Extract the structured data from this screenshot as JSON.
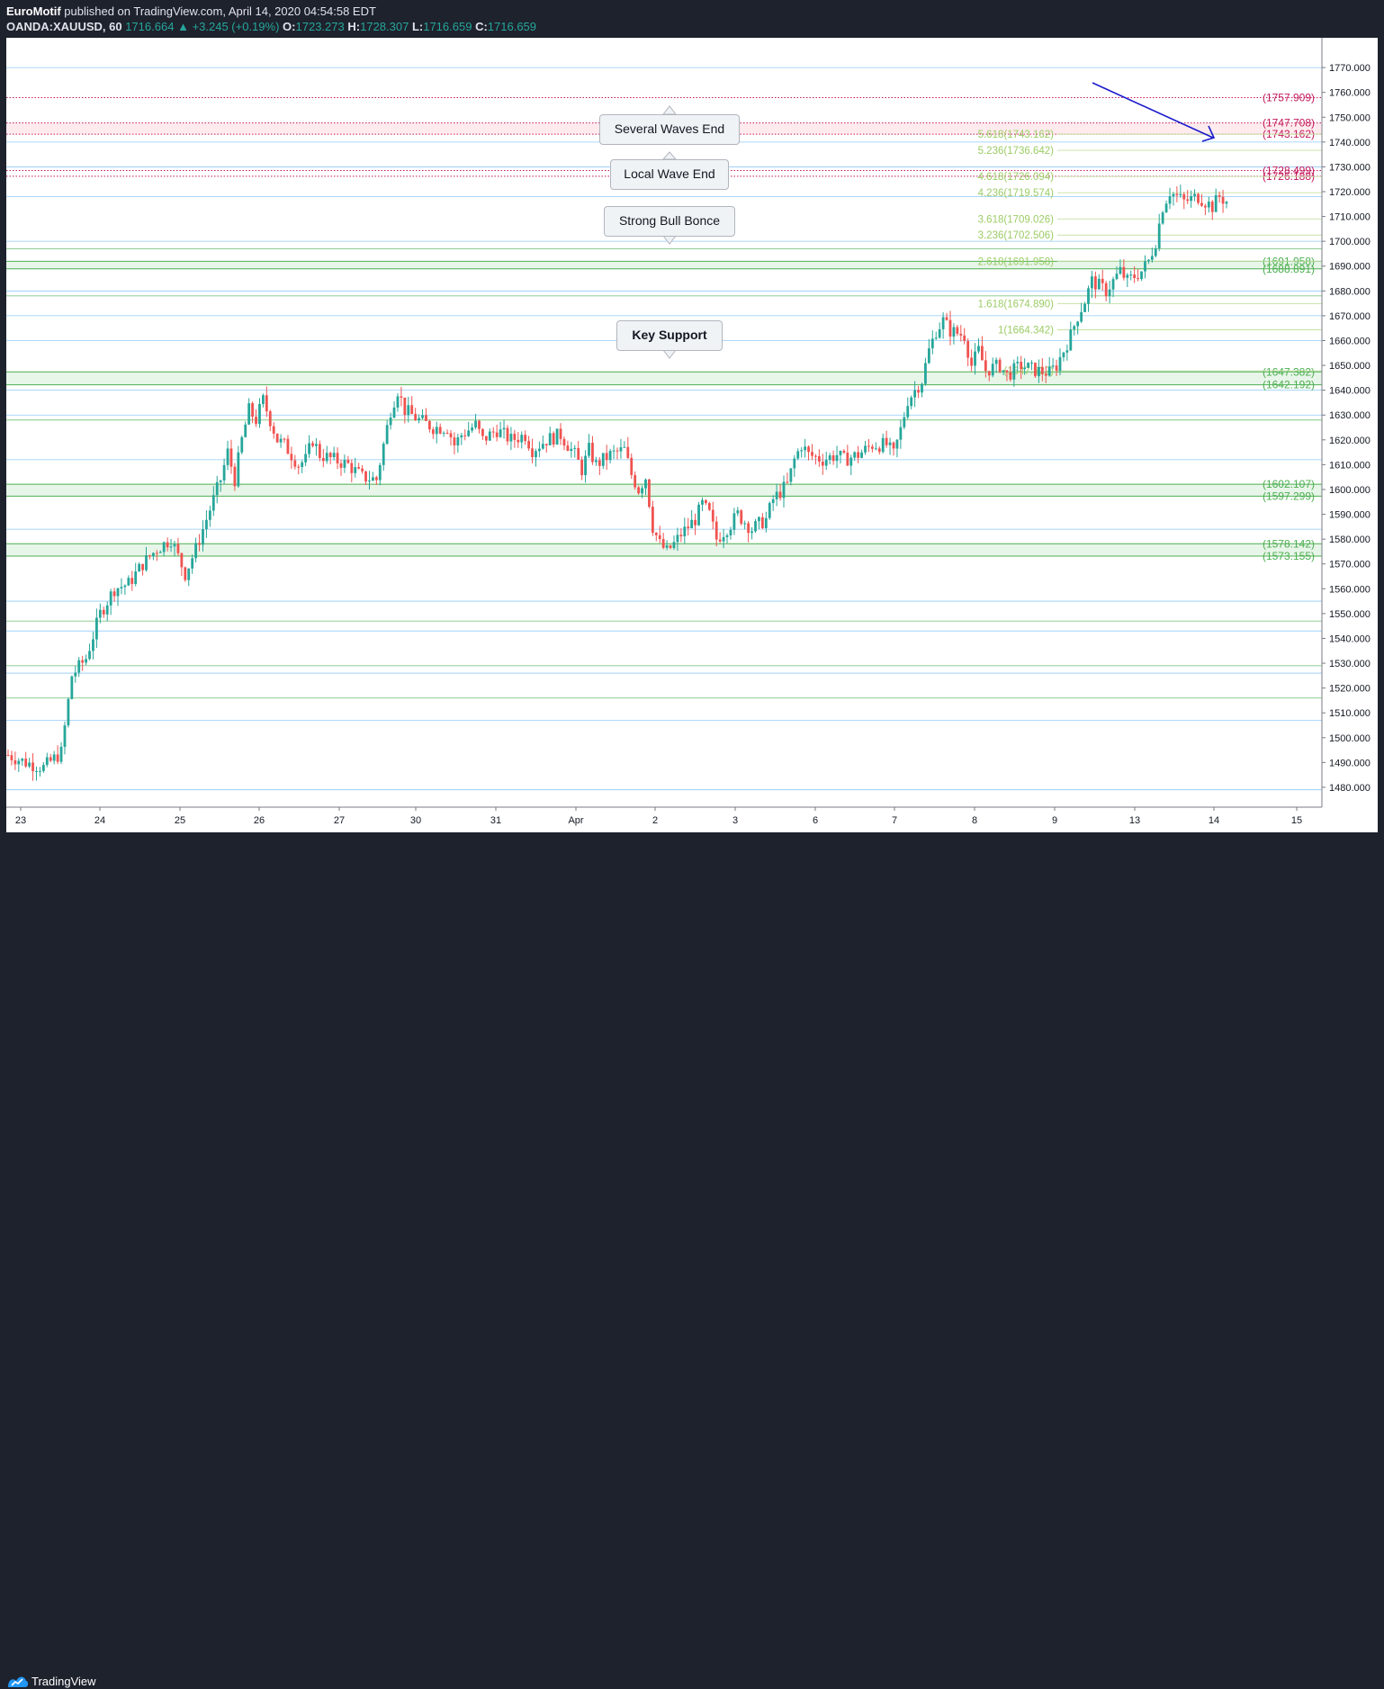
{
  "header": {
    "publisher": "EuroMotif",
    "published_text": " published on TradingView.com, April 14, 2020 04:54:58 EDT",
    "symbol": "OANDA:XAUUSD, 60",
    "last": "1716.664",
    "change": "+3.245 (+0.19%)",
    "o_label": "O:",
    "o": "1723.273",
    "h_label": "H:",
    "h": "1728.307",
    "l_label": "L:",
    "l": "1716.659",
    "c_label": "C:",
    "c": "1716.659"
  },
  "footer": {
    "brand": "TradingView"
  },
  "callouts": {
    "several_waves": "Several Waves End",
    "local_wave": "Local Wave End",
    "strong_bull": "Strong Bull Bonce",
    "key_support": "Key Support"
  },
  "colors": {
    "up": "#26a69a",
    "down": "#ef5350",
    "red_level": "#c2185b",
    "green_level": "#4caf50",
    "fib_text": "#9ccc65",
    "light_blue": "#90caf9",
    "arrow": "#1a1acc"
  },
  "chart_data": {
    "type": "candlestick",
    "title": "",
    "xlabel": "",
    "ylabel": "",
    "ylim": [
      1472,
      1782
    ],
    "y_ticks": [
      1480,
      1490,
      1500,
      1510,
      1520,
      1530,
      1540,
      1550,
      1560,
      1570,
      1580,
      1590,
      1600,
      1610,
      1620,
      1630,
      1640,
      1650,
      1660,
      1670,
      1680,
      1690,
      1700,
      1710,
      1720,
      1730,
      1740,
      1750,
      1760,
      1770
    ],
    "x_ticks": [
      "23",
      "24",
      "25",
      "26",
      "27",
      "30",
      "31",
      "Apr",
      "2",
      "3",
      "6",
      "7",
      "8",
      "9",
      "13",
      "14",
      "15"
    ],
    "path_points": [
      [
        0,
        1493
      ],
      [
        5,
        1490
      ],
      [
        10,
        1488
      ],
      [
        15,
        1494
      ],
      [
        18,
        1525
      ],
      [
        22,
        1532
      ],
      [
        26,
        1550
      ],
      [
        30,
        1560
      ],
      [
        34,
        1562
      ],
      [
        38,
        1570
      ],
      [
        42,
        1576
      ],
      [
        46,
        1580
      ],
      [
        50,
        1566
      ],
      [
        53,
        1576
      ],
      [
        56,
        1588
      ],
      [
        60,
        1604
      ],
      [
        62,
        1615
      ],
      [
        64,
        1604
      ],
      [
        66,
        1620
      ],
      [
        68,
        1632
      ],
      [
        70,
        1628
      ],
      [
        72,
        1636
      ],
      [
        74,
        1628
      ],
      [
        76,
        1620
      ],
      [
        78,
        1618
      ],
      [
        82,
        1610
      ],
      [
        84,
        1612
      ],
      [
        86,
        1620
      ],
      [
        88,
        1614
      ],
      [
        92,
        1612
      ],
      [
        96,
        1610
      ],
      [
        100,
        1605
      ],
      [
        104,
        1604
      ],
      [
        106,
        1618
      ],
      [
        108,
        1632
      ],
      [
        110,
        1640
      ],
      [
        112,
        1632
      ],
      [
        116,
        1628
      ],
      [
        120,
        1625
      ],
      [
        124,
        1625
      ],
      [
        126,
        1618
      ],
      [
        128,
        1622
      ],
      [
        132,
        1626
      ],
      [
        134,
        1620
      ],
      [
        138,
        1624
      ],
      [
        142,
        1620
      ],
      [
        146,
        1622
      ],
      [
        148,
        1616
      ],
      [
        152,
        1620
      ],
      [
        156,
        1622
      ],
      [
        158,
        1618
      ],
      [
        160,
        1614
      ],
      [
        162,
        1608
      ],
      [
        164,
        1616
      ],
      [
        166,
        1610
      ],
      [
        170,
        1614
      ],
      [
        174,
        1616
      ],
      [
        176,
        1606
      ],
      [
        178,
        1600
      ],
      [
        180,
        1605
      ],
      [
        182,
        1585
      ],
      [
        184,
        1578
      ],
      [
        186,
        1575
      ],
      [
        188,
        1578
      ],
      [
        190,
        1582
      ],
      [
        194,
        1588
      ],
      [
        196,
        1594
      ],
      [
        198,
        1590
      ],
      [
        200,
        1580
      ],
      [
        204,
        1586
      ],
      [
        206,
        1590
      ],
      [
        210,
        1584
      ],
      [
        214,
        1588
      ],
      [
        216,
        1596
      ],
      [
        220,
        1602
      ],
      [
        222,
        1612
      ],
      [
        224,
        1618
      ],
      [
        226,
        1614
      ],
      [
        230,
        1612
      ],
      [
        234,
        1614
      ],
      [
        236,
        1612
      ],
      [
        240,
        1614
      ],
      [
        244,
        1618
      ],
      [
        248,
        1618
      ],
      [
        250,
        1614
      ],
      [
        252,
        1624
      ],
      [
        254,
        1636
      ],
      [
        258,
        1644
      ],
      [
        260,
        1656
      ],
      [
        262,
        1664
      ],
      [
        264,
        1668
      ],
      [
        266,
        1664
      ],
      [
        270,
        1662
      ],
      [
        272,
        1650
      ],
      [
        274,
        1656
      ],
      [
        276,
        1648
      ],
      [
        280,
        1650
      ],
      [
        282,
        1646
      ],
      [
        286,
        1650
      ],
      [
        290,
        1648
      ],
      [
        294,
        1647
      ],
      [
        296,
        1650
      ],
      [
        298,
        1656
      ],
      [
        300,
        1662
      ],
      [
        302,
        1670
      ],
      [
        304,
        1676
      ],
      [
        306,
        1684
      ],
      [
        308,
        1682
      ],
      [
        310,
        1680
      ],
      [
        314,
        1688
      ],
      [
        316,
        1684
      ],
      [
        320,
        1688
      ],
      [
        322,
        1692
      ],
      [
        324,
        1700
      ],
      [
        326,
        1714
      ],
      [
        328,
        1720
      ],
      [
        332,
        1716
      ],
      [
        336,
        1718
      ],
      [
        340,
        1714
      ],
      [
        342,
        1718
      ],
      [
        344,
        1716
      ]
    ],
    "horizontal_levels": [
      {
        "price": 1757.909,
        "label": "(1757.909)",
        "color": "#c2185b",
        "style": "dotted"
      },
      {
        "price": 1747.708,
        "label": "(1747.708)",
        "color": "#c2185b",
        "style": "dotted"
      },
      {
        "price": 1743.162,
        "label": "(1743.162)",
        "color": "#c2185b",
        "style": "dotted"
      },
      {
        "price": 1728.499,
        "label": "(1728.499)",
        "color": "#c2185b",
        "style": "dotted"
      },
      {
        "price": 1726.188,
        "label": "(1726.188)",
        "color": "#c2185b",
        "style": "dotted"
      },
      {
        "price": 1691.958,
        "label": "(1691.958)",
        "color": "#4caf50",
        "style": "solid"
      },
      {
        "price": 1688.891,
        "label": "(1688.891)",
        "color": "#4caf50",
        "style": "solid"
      },
      {
        "price": 1647.382,
        "label": "(1647.382)",
        "color": "#4caf50",
        "style": "solid"
      },
      {
        "price": 1642.192,
        "label": "(1642.192)",
        "color": "#4caf50",
        "style": "solid"
      },
      {
        "price": 1602.107,
        "label": "(1602.107)",
        "color": "#4caf50",
        "style": "solid"
      },
      {
        "price": 1597.299,
        "label": "(1597.299)",
        "color": "#4caf50",
        "style": "solid"
      },
      {
        "price": 1578.142,
        "label": "(1578.142)",
        "color": "#4caf50",
        "style": "solid"
      },
      {
        "price": 1573.155,
        "label": "(1573.155)",
        "color": "#4caf50",
        "style": "solid"
      }
    ],
    "fib_levels": [
      {
        "price": 1743.162,
        "label": "5.618(1743.162)"
      },
      {
        "price": 1736.642,
        "label": "5.236(1736.642)"
      },
      {
        "price": 1726.094,
        "label": "4.618(1726.094)"
      },
      {
        "price": 1719.574,
        "label": "4.236(1719.574)"
      },
      {
        "price": 1709.026,
        "label": "3.618(1709.026)"
      },
      {
        "price": 1702.506,
        "label": "3.236(1702.506)"
      },
      {
        "price": 1691.958,
        "label": "2.618(1691.958)"
      },
      {
        "price": 1674.89,
        "label": "1.618(1674.890)"
      },
      {
        "price": 1664.342,
        "label": "1(1664.342)"
      },
      {
        "price": 1647.822,
        "label": "(1647.822)"
      }
    ],
    "light_lines": [
      1770,
      1740,
      1730,
      1718,
      1700,
      1680,
      1670,
      1660,
      1640,
      1630,
      1612,
      1584,
      1555,
      1543,
      1526,
      1507,
      1479
    ],
    "green_lines": [
      1697,
      1678,
      1628,
      1547,
      1529,
      1516
    ]
  }
}
